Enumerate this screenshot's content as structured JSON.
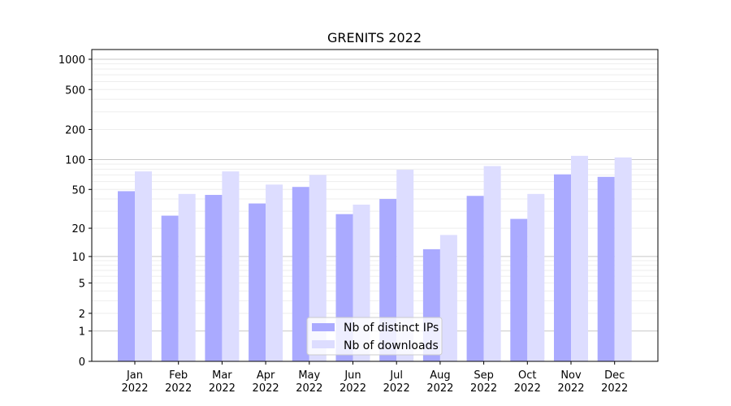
{
  "chart_data": {
    "type": "bar",
    "title": "GRENITS 2022",
    "xlabel": "",
    "ylabel": "",
    "yscale": "log(1+y)",
    "ylim": [
      0,
      1000
    ],
    "y_ticks": [
      0,
      1,
      2,
      5,
      10,
      20,
      50,
      100,
      200,
      500,
      1000
    ],
    "grid": "horizontal",
    "legend_position": "bottom-center",
    "categories": [
      [
        "Jan",
        "2022"
      ],
      [
        "Feb",
        "2022"
      ],
      [
        "Mar",
        "2022"
      ],
      [
        "Apr",
        "2022"
      ],
      [
        "May",
        "2022"
      ],
      [
        "Jun",
        "2022"
      ],
      [
        "Jul",
        "2022"
      ],
      [
        "Aug",
        "2022"
      ],
      [
        "Sep",
        "2022"
      ],
      [
        "Oct",
        "2022"
      ],
      [
        "Nov",
        "2022"
      ],
      [
        "Dec",
        "2022"
      ]
    ],
    "series": [
      {
        "name": "Nb of distinct IPs",
        "color": "#aaaaff",
        "values": [
          48,
          27,
          44,
          36,
          53,
          28,
          40,
          12,
          43,
          25,
          71,
          67
        ]
      },
      {
        "name": "Nb of downloads",
        "color": "#ddddff",
        "values": [
          76,
          45,
          76,
          56,
          70,
          35,
          79,
          17,
          86,
          45,
          109,
          105
        ]
      }
    ]
  }
}
